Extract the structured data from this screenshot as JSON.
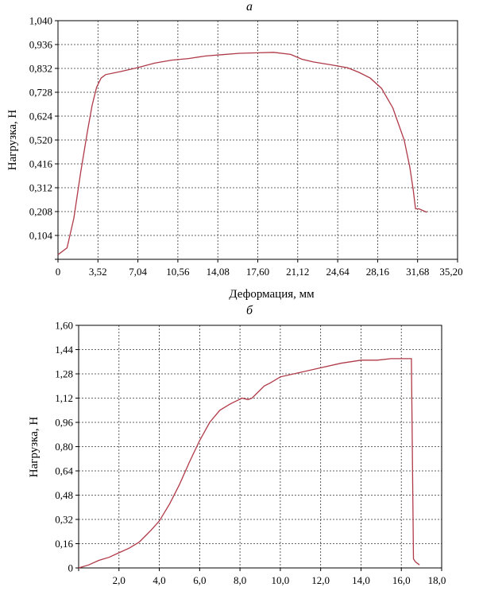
{
  "chart_data": [
    {
      "type": "line",
      "panel_label": "а",
      "xlabel": "Деформация, мм",
      "ylabel": "Нагрузка, Н",
      "xlim": [
        0,
        35.2
      ],
      "ylim": [
        0,
        1.04
      ],
      "x_ticks": [
        "0",
        "3,52",
        "7,04",
        "10,56",
        "14,08",
        "17,60",
        "21,12",
        "24,64",
        "28,16",
        "31,68",
        "35,20"
      ],
      "y_ticks": [
        "",
        "0,104",
        "0,208",
        "0,312",
        "0,416",
        "0,520",
        "0,624",
        "0,728",
        "0,832",
        "0,936",
        "1,040"
      ],
      "grid": true,
      "series": [
        {
          "color": "#b03a48",
          "x": [
            0,
            0.8,
            1.4,
            2.0,
            2.6,
            3.0,
            3.4,
            3.8,
            4.2,
            5.5,
            7.0,
            8.5,
            10.0,
            11.5,
            13.0,
            14.5,
            16.0,
            17.6,
            19.0,
            20.5,
            21.5,
            22.5,
            24.0,
            25.5,
            26.5,
            27.5,
            28.5,
            29.5,
            30.5,
            31.0,
            31.3,
            31.5,
            31.8,
            32.5
          ],
          "y": [
            0.02,
            0.05,
            0.18,
            0.38,
            0.56,
            0.67,
            0.75,
            0.79,
            0.805,
            0.818,
            0.835,
            0.855,
            0.868,
            0.875,
            0.886,
            0.892,
            0.898,
            0.9,
            0.902,
            0.893,
            0.872,
            0.86,
            0.848,
            0.835,
            0.815,
            0.79,
            0.745,
            0.66,
            0.52,
            0.4,
            0.3,
            0.22,
            0.22,
            0.205
          ]
        }
      ]
    },
    {
      "type": "line",
      "panel_label": "б",
      "xlabel": "",
      "ylabel": "Нагрузка, Н",
      "xlim": [
        0,
        18.0
      ],
      "ylim": [
        0,
        1.6
      ],
      "x_ticks": [
        "",
        "2,0",
        "4,0",
        "6,0",
        "8,0",
        "10,0",
        "12,0",
        "14,0",
        "16,0",
        "18,0"
      ],
      "y_ticks": [
        "0",
        "0,16",
        "0,32",
        "0,48",
        "0,64",
        "0,80",
        "0,96",
        "1,12",
        "1,28",
        "1,44",
        "1,60"
      ],
      "grid": true,
      "series": [
        {
          "color": "#b03a48",
          "x": [
            0,
            0.5,
            1.0,
            1.5,
            2.0,
            2.5,
            3.0,
            3.3,
            3.6,
            4.0,
            4.5,
            5.0,
            5.5,
            6.0,
            6.5,
            7.0,
            7.5,
            7.8,
            8.1,
            8.4,
            8.6,
            8.9,
            9.2,
            9.5,
            10.0,
            11.0,
            12.0,
            13.0,
            14.0,
            14.8,
            15.5,
            16.0,
            16.5,
            16.6,
            16.7,
            16.9
          ],
          "y": [
            0.0,
            0.02,
            0.05,
            0.07,
            0.1,
            0.13,
            0.17,
            0.21,
            0.25,
            0.31,
            0.42,
            0.55,
            0.7,
            0.84,
            0.96,
            1.04,
            1.08,
            1.1,
            1.12,
            1.11,
            1.12,
            1.16,
            1.2,
            1.22,
            1.26,
            1.29,
            1.32,
            1.35,
            1.37,
            1.37,
            1.38,
            1.38,
            1.38,
            0.06,
            0.04,
            0.02
          ]
        }
      ]
    }
  ]
}
